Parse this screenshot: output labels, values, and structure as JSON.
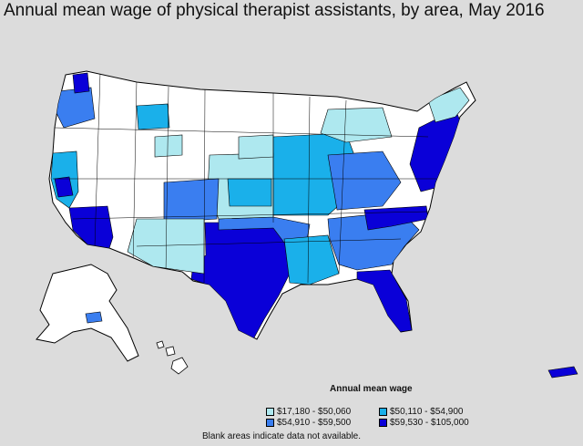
{
  "title": "Annual mean wage of physical therapist assistants, by area, May 2016",
  "legend": {
    "title": "Annual mean wage",
    "items": [
      {
        "label": "$17,180 - $50,060",
        "color": "#aee8ef"
      },
      {
        "label": "$50,110 - $54,900",
        "color": "#1ab0ea"
      },
      {
        "label": "$54,910 - $59,500",
        "color": "#3a7ef0"
      },
      {
        "label": "$59,530 - $105,000",
        "color": "#0a00d8"
      }
    ]
  },
  "footnote": "Blank areas indicate data not available.",
  "colors": {
    "background": "#dcdcdc",
    "no_data": "#ffffff",
    "border": "#000000"
  }
}
